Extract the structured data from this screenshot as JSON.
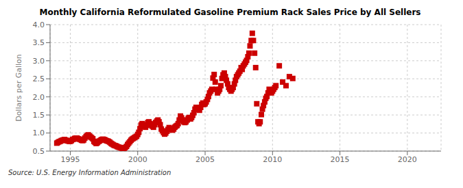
{
  "chart_data": {
    "type": "scatter",
    "title": "Monthly California Reformulated Gasoline Premium Rack Sales Price by All Sellers",
    "ylabel": "Dollars per Gallon",
    "annotations": [
      "Source: U.S. Energy Information Administration"
    ],
    "xlim": [
      1993.5,
      2022.5
    ],
    "xticks": [
      1995,
      2000,
      2005,
      2010,
      2015,
      2020
    ],
    "ylim": [
      0.5,
      4.0
    ],
    "yticks": [
      0.5,
      {
        "value": 1.0,
        "label": "1.0"
      },
      1.5,
      {
        "value": 2.0,
        "label": "2.0"
      },
      2.5,
      {
        "value": 3.0,
        "label": "3.0"
      },
      3.5,
      {
        "value": 4.0,
        "label": "4.0"
      }
    ],
    "grid": true,
    "color": "#cc0000",
    "marker": "square",
    "x": [
      1994.0,
      1994.08,
      1994.17,
      1994.25,
      1994.33,
      1994.42,
      1994.5,
      1994.58,
      1994.67,
      1994.75,
      1994.83,
      1994.92,
      1995.0,
      1995.08,
      1995.17,
      1995.25,
      1995.33,
      1995.42,
      1995.5,
      1995.58,
      1995.67,
      1995.75,
      1995.83,
      1995.92,
      1996.0,
      1996.08,
      1996.17,
      1996.25,
      1996.33,
      1996.42,
      1996.5,
      1996.58,
      1996.67,
      1996.75,
      1996.83,
      1996.92,
      1997.0,
      1997.08,
      1997.17,
      1997.25,
      1997.33,
      1997.42,
      1997.5,
      1997.58,
      1997.67,
      1997.75,
      1997.83,
      1997.92,
      1998.0,
      1998.08,
      1998.17,
      1998.25,
      1998.33,
      1998.42,
      1998.5,
      1998.58,
      1998.67,
      1998.75,
      1998.83,
      1998.92,
      1999.0,
      1999.08,
      1999.17,
      1999.25,
      1999.33,
      1999.42,
      1999.5,
      1999.58,
      1999.67,
      1999.75,
      1999.83,
      1999.92,
      2000.0,
      2000.08,
      2000.17,
      2000.25,
      2000.33,
      2000.42,
      2000.5,
      2000.58,
      2000.67,
      2000.75,
      2000.83,
      2000.92,
      2001.0,
      2001.08,
      2001.17,
      2001.25,
      2001.33,
      2001.42,
      2001.5,
      2001.58,
      2001.67,
      2001.75,
      2001.83,
      2001.92,
      2002.0,
      2002.08,
      2002.17,
      2002.25,
      2002.33,
      2002.42,
      2002.5,
      2002.58,
      2002.67,
      2002.75,
      2002.83,
      2002.92,
      2003.0,
      2003.08,
      2003.17,
      2003.25,
      2003.33,
      2003.42,
      2003.5,
      2003.58,
      2003.67,
      2003.75,
      2003.83,
      2003.92,
      2004.0,
      2004.08,
      2004.17,
      2004.25,
      2004.33,
      2004.42,
      2004.5,
      2004.58,
      2004.67,
      2004.75,
      2004.83,
      2004.92,
      2005.0,
      2005.08,
      2005.17,
      2005.25,
      2005.33,
      2005.42,
      2005.5,
      2005.58,
      2005.67,
      2005.75,
      2005.83,
      2005.92,
      2006.0,
      2006.08,
      2006.17,
      2006.25,
      2006.33,
      2006.42,
      2006.5,
      2006.58,
      2006.67,
      2006.75,
      2006.83,
      2006.92,
      2007.0,
      2007.08,
      2007.17,
      2007.25,
      2007.33,
      2007.42,
      2007.5,
      2007.58,
      2007.67,
      2007.75,
      2007.83,
      2007.92,
      2008.0,
      2008.08,
      2008.17,
      2008.25,
      2008.33,
      2008.42,
      2008.5,
      2008.58,
      2008.67,
      2008.75,
      2008.83,
      2008.92,
      2009.0,
      2009.08,
      2009.17,
      2009.25,
      2009.33,
      2009.42,
      2009.5,
      2009.58,
      2009.67,
      2009.75,
      2009.83,
      2009.92,
      2010.0,
      2010.08,
      2010.17,
      2010.25,
      2010.5,
      2010.75,
      2011.0,
      2011.25,
      2011.5
    ],
    "values": [
      0.72,
      0.74,
      0.76,
      0.77,
      0.79,
      0.8,
      0.81,
      0.82,
      0.8,
      0.79,
      0.78,
      0.77,
      0.77,
      0.79,
      0.82,
      0.83,
      0.85,
      0.86,
      0.86,
      0.84,
      0.83,
      0.82,
      0.8,
      0.79,
      0.81,
      0.86,
      0.9,
      0.93,
      0.95,
      0.92,
      0.89,
      0.87,
      0.84,
      0.77,
      0.74,
      0.71,
      0.73,
      0.76,
      0.78,
      0.8,
      0.82,
      0.83,
      0.82,
      0.81,
      0.79,
      0.78,
      0.77,
      0.75,
      0.72,
      0.7,
      0.68,
      0.66,
      0.65,
      0.64,
      0.62,
      0.61,
      0.6,
      0.59,
      0.58,
      0.57,
      0.58,
      0.6,
      0.63,
      0.68,
      0.72,
      0.76,
      0.8,
      0.83,
      0.85,
      0.87,
      0.89,
      0.91,
      0.96,
      1.02,
      1.12,
      1.22,
      1.26,
      1.23,
      1.19,
      1.16,
      1.21,
      1.29,
      1.31,
      1.26,
      1.23,
      1.19,
      1.16,
      1.23,
      1.29,
      1.33,
      1.36,
      1.31,
      1.23,
      1.11,
      1.06,
      1.01,
      0.97,
      1.0,
      1.05,
      1.1,
      1.15,
      1.12,
      1.1,
      1.08,
      1.11,
      1.16,
      1.19,
      1.21,
      1.26,
      1.36,
      1.47,
      1.42,
      1.36,
      1.31,
      1.29,
      1.31,
      1.36,
      1.41,
      1.43,
      1.39,
      1.43,
      1.49,
      1.56,
      1.66,
      1.71,
      1.69,
      1.66,
      1.63,
      1.71,
      1.79,
      1.83,
      1.79,
      1.81,
      1.86,
      1.93,
      2.01,
      2.11,
      2.16,
      2.21,
      2.52,
      2.62,
      2.41,
      2.21,
      2.11,
      2.16,
      2.21,
      2.31,
      2.51,
      2.61,
      2.66,
      2.56,
      2.46,
      2.36,
      2.26,
      2.21,
      2.16,
      2.21,
      2.26,
      2.36,
      2.46,
      2.56,
      2.61,
      2.66,
      2.71,
      2.81,
      2.76,
      2.86,
      2.91,
      2.96,
      3.01,
      3.11,
      3.21,
      3.41,
      3.56,
      3.76,
      3.56,
      3.21,
      2.81,
      1.81,
      1.31,
      1.26,
      1.31,
      1.51,
      1.66,
      1.76,
      1.86,
      1.96,
      2.01,
      2.11,
      2.21,
      2.16,
      2.11,
      2.16,
      2.21,
      2.26,
      2.31,
      2.86,
      2.41,
      2.31,
      2.56,
      2.51
    ]
  }
}
